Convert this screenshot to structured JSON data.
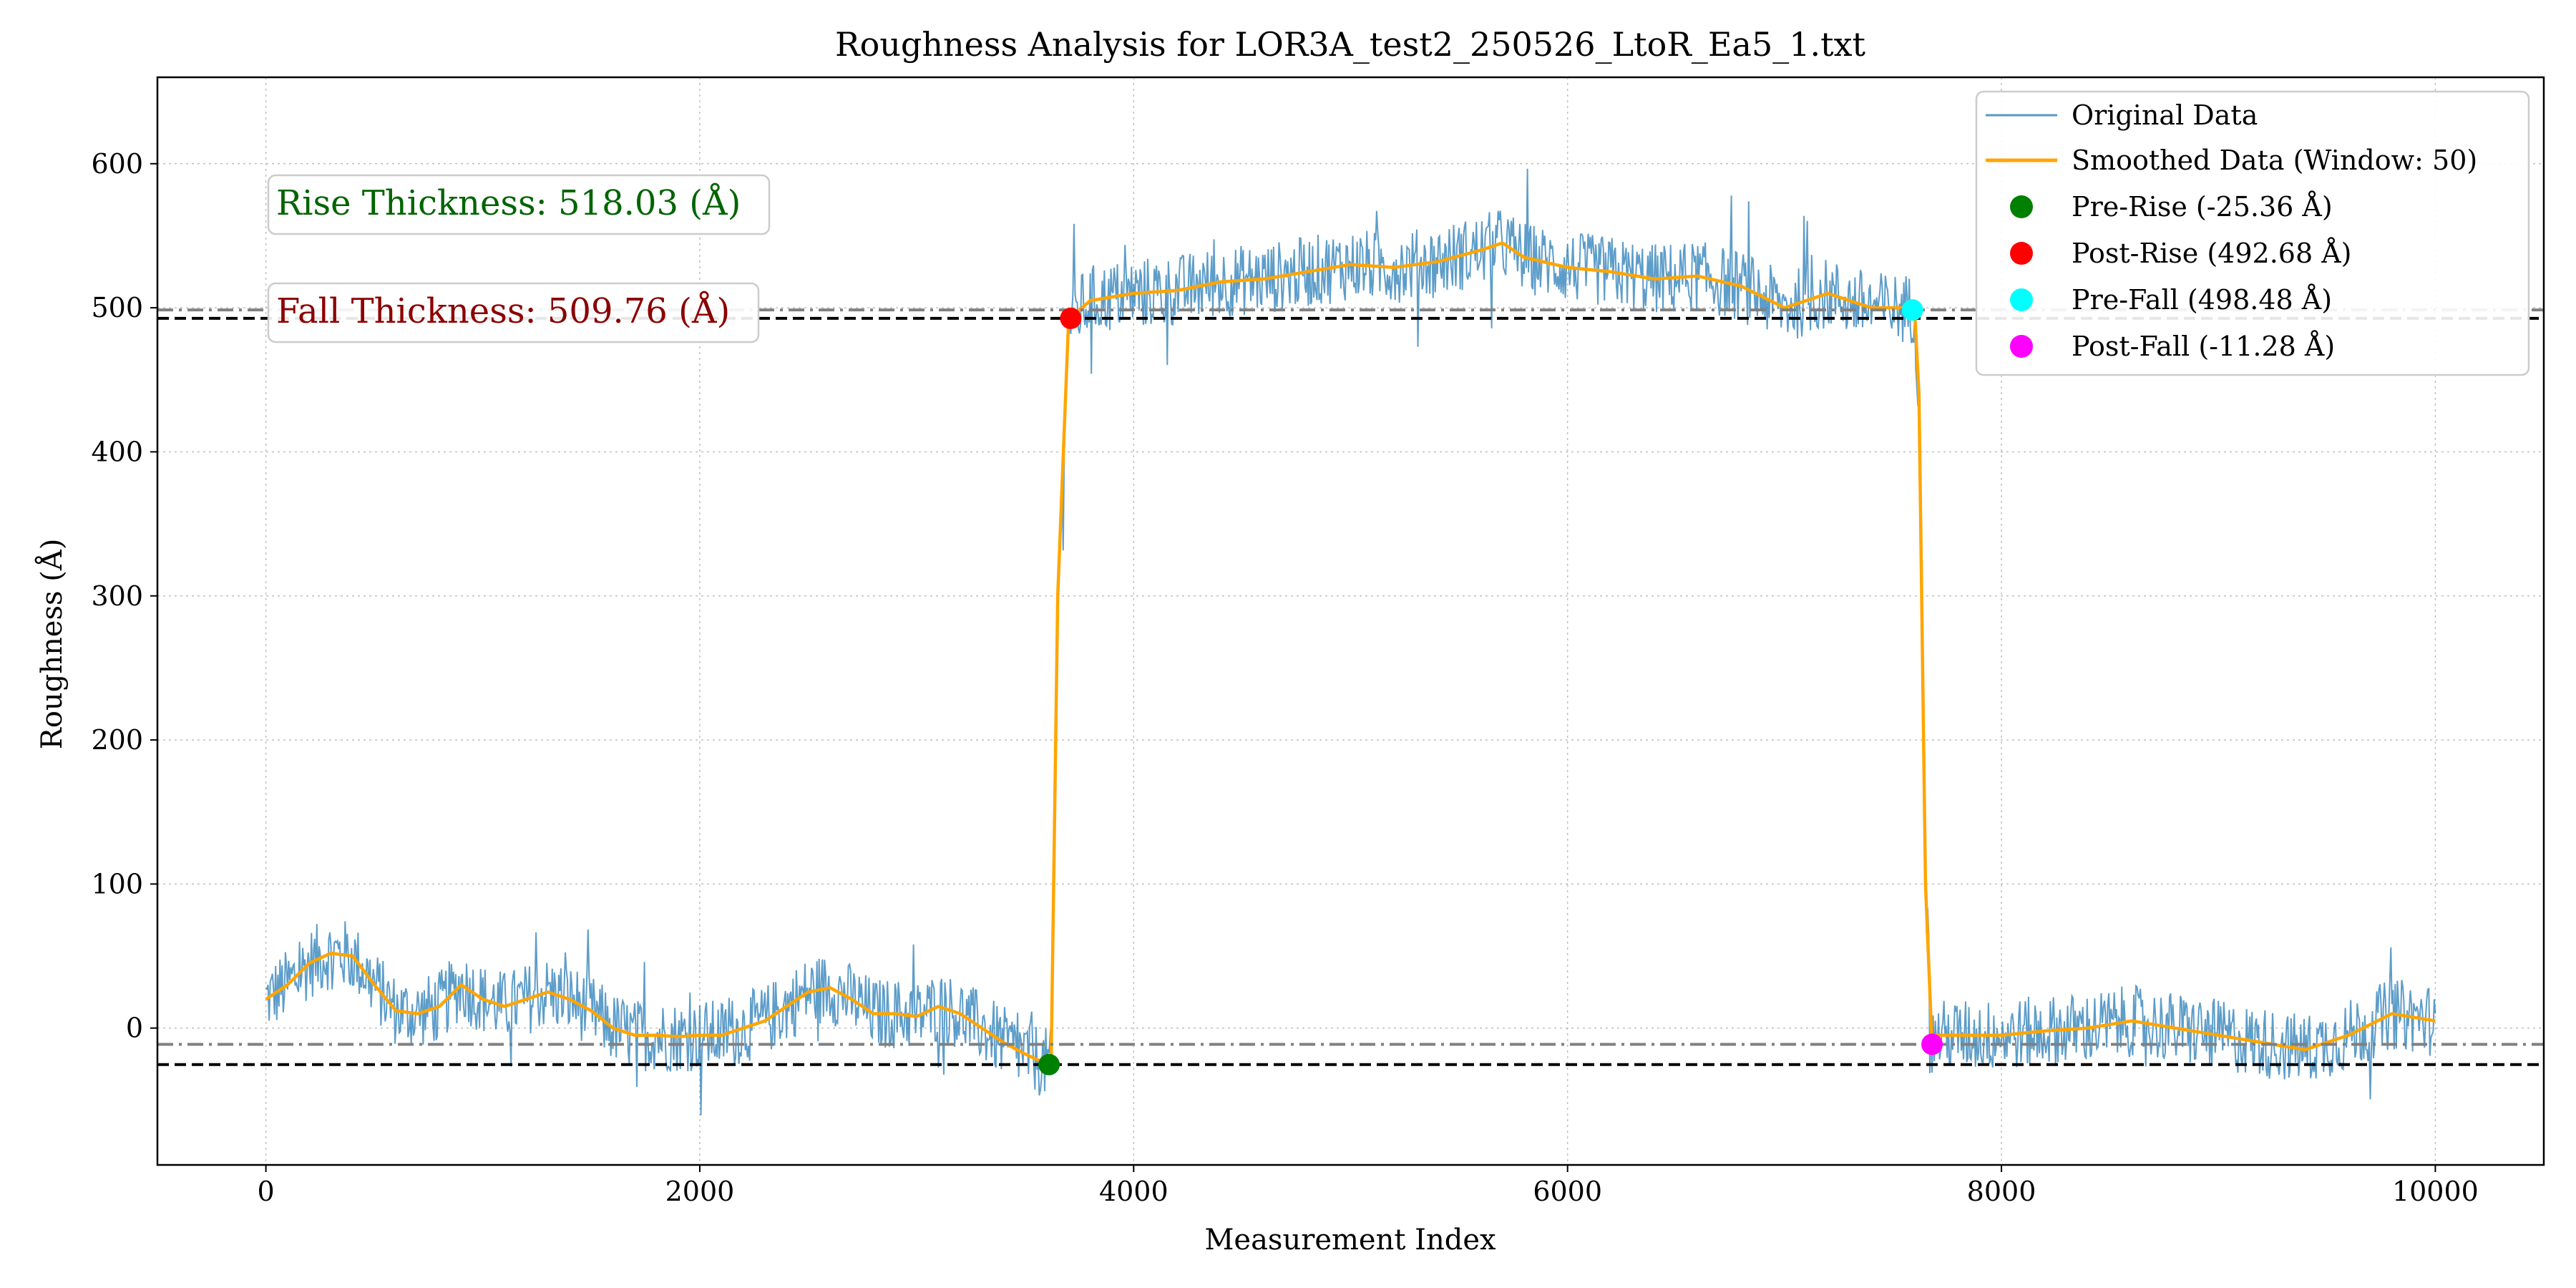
{
  "chart_data": {
    "type": "line",
    "title": "Roughness Analysis for LOR3A_test2_250526_LtoR_Ea5_1.txt",
    "xlabel": "Measurement Index",
    "ylabel": "Roughness (Å)",
    "xlim": [
      -500,
      10500
    ],
    "ylim": [
      -95,
      660
    ],
    "xticks": [
      0,
      2000,
      4000,
      6000,
      8000,
      10000
    ],
    "yticks": [
      0,
      100,
      200,
      300,
      400,
      500,
      600
    ],
    "xtick_labels": [
      "0",
      "2000",
      "4000",
      "6000",
      "8000",
      "10000"
    ],
    "ytick_labels": [
      "0",
      "100",
      "200",
      "300",
      "400",
      "500",
      "600"
    ],
    "grid": true,
    "legend_position": "top-right",
    "annotations": [
      {
        "text": "Rise Thickness: 518.03 (Å)",
        "color": "#006400"
      },
      {
        "text": "Fall Thickness: 509.76 (Å)",
        "color": "#8b0000"
      }
    ],
    "reference_lines": [
      {
        "y": -25.36,
        "style": "dashed",
        "color": "#000000"
      },
      {
        "y": 492.68,
        "style": "dashed",
        "color": "#000000"
      },
      {
        "y": 498.48,
        "style": "dashdot",
        "color": "#808080"
      },
      {
        "y": -11.28,
        "style": "dashdot",
        "color": "#808080"
      }
    ],
    "series": [
      {
        "name": "Original Data",
        "kind": "line",
        "color": "#1f77b4",
        "x_range": [
          0,
          10000
        ],
        "noise_amplitude": 25
      },
      {
        "name": "Smoothed Data (Window: 50)",
        "kind": "line",
        "color": "#ffa500",
        "x": [
          0,
          100,
          200,
          300,
          400,
          500,
          600,
          700,
          800,
          900,
          1000,
          1100,
          1200,
          1300,
          1400,
          1500,
          1600,
          1700,
          1800,
          1900,
          2000,
          2100,
          2200,
          2300,
          2400,
          2500,
          2600,
          2700,
          2800,
          2900,
          3000,
          3100,
          3200,
          3300,
          3400,
          3500,
          3600,
          3620,
          3650,
          3700,
          3800,
          4000,
          4200,
          4400,
          4600,
          4800,
          5000,
          5200,
          5400,
          5600,
          5700,
          5800,
          6000,
          6200,
          6400,
          6600,
          6800,
          7000,
          7200,
          7400,
          7550,
          7600,
          7620,
          7650,
          7680,
          7700,
          7800,
          8000,
          8200,
          8400,
          8600,
          8800,
          9000,
          9200,
          9400,
          9600,
          9800,
          10000
        ],
        "y": [
          20,
          30,
          45,
          52,
          50,
          30,
          12,
          10,
          15,
          30,
          20,
          15,
          20,
          25,
          20,
          12,
          0,
          -5,
          -5,
          -6,
          -5,
          -5,
          0,
          5,
          15,
          25,
          28,
          20,
          10,
          10,
          8,
          15,
          10,
          0,
          -10,
          -18,
          -25,
          -20,
          300,
          492,
          505,
          510,
          512,
          518,
          520,
          525,
          530,
          528,
          532,
          540,
          545,
          535,
          528,
          525,
          520,
          522,
          515,
          500,
          510,
          500,
          500,
          498,
          440,
          100,
          -11,
          -5,
          -5,
          -5,
          -2,
          0,
          5,
          0,
          -5,
          -10,
          -15,
          -5,
          10,
          5
        ]
      },
      {
        "name": "Pre-Rise (-25.36 Å)",
        "kind": "marker",
        "color": "#008000",
        "x": 3610,
        "y": -25.36
      },
      {
        "name": "Post-Rise (492.68 Å)",
        "kind": "marker",
        "color": "#ff0000",
        "x": 3710,
        "y": 492.68
      },
      {
        "name": "Pre-Fall (498.48 Å)",
        "kind": "marker",
        "color": "#00ffff",
        "x": 7590,
        "y": 498.48
      },
      {
        "name": "Post-Fall (-11.28 Å)",
        "kind": "marker",
        "color": "#ff00ff",
        "x": 7680,
        "y": -11.28
      }
    ]
  }
}
